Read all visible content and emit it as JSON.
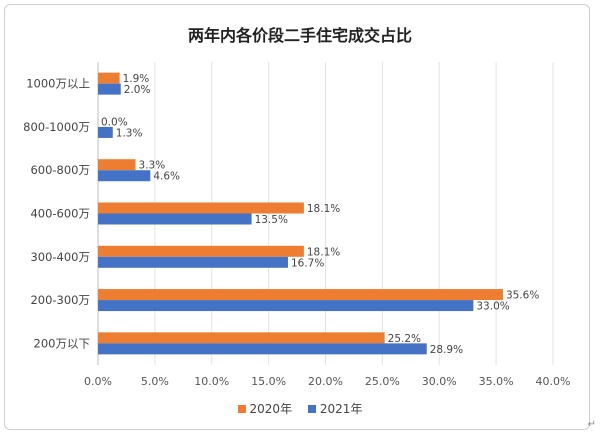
{
  "chart_data": {
    "type": "bar",
    "orientation": "horizontal",
    "title": "两年内各价段二手住宅成交占比",
    "categories": [
      "1000万以上",
      "800-1000万",
      "600-800万",
      "400-600万",
      "300-400万",
      "200-300万",
      "200万以下"
    ],
    "series": [
      {
        "name": "2020年",
        "color": "#ED7D31",
        "values": [
          1.9,
          0.0,
          3.3,
          18.1,
          18.1,
          35.6,
          25.2
        ]
      },
      {
        "name": "2021年",
        "color": "#4472C4",
        "values": [
          2.0,
          1.3,
          4.6,
          13.5,
          16.7,
          33.0,
          28.9
        ]
      }
    ],
    "xlim": [
      0,
      40
    ],
    "xticks": [
      "0.0%",
      "5.0%",
      "10.0%",
      "15.0%",
      "20.0%",
      "25.0%",
      "30.0%",
      "35.0%",
      "40.0%"
    ],
    "xlabel": "",
    "ylabel": "",
    "grid": true,
    "legend": "bottom",
    "data_labels": true
  },
  "return_mark": "↵"
}
